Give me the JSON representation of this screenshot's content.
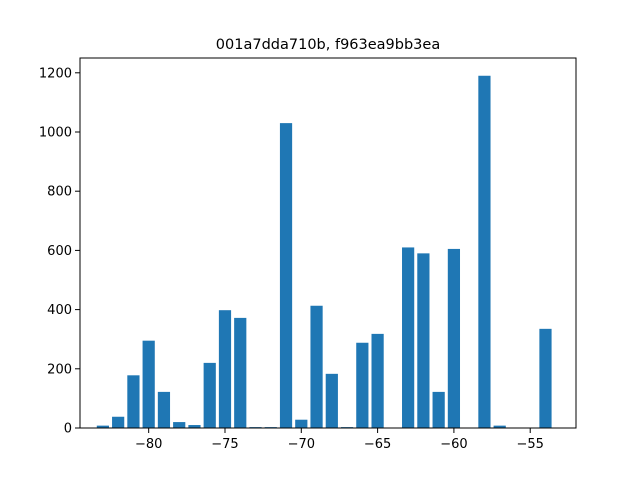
{
  "chart_data": {
    "type": "bar",
    "title": "001a7dda710b, f963ea9bb3ea",
    "xlabel": "",
    "ylabel": "",
    "bar_color": "#1f77b4",
    "bar_width": 0.8,
    "xlim": [
      -84.5,
      -52
    ],
    "ylim": [
      0,
      1250
    ],
    "x_ticks": [
      -80,
      -75,
      -70,
      -65,
      -60,
      -55
    ],
    "x_tick_labels": [
      "−80",
      "−75",
      "−70",
      "−65",
      "−60",
      "−55"
    ],
    "y_ticks": [
      0,
      200,
      400,
      600,
      800,
      1000,
      1200
    ],
    "y_tick_labels": [
      "0",
      "200",
      "400",
      "600",
      "800",
      "1000",
      "1200"
    ],
    "grid": false,
    "x": [
      -83,
      -82,
      -81,
      -80,
      -79,
      -78,
      -77,
      -76,
      -75,
      -74,
      -73,
      -72,
      -71,
      -70,
      -69,
      -68,
      -67,
      -66,
      -65,
      -63,
      -62,
      -61,
      -60,
      -58,
      -57,
      -54
    ],
    "values": [
      8,
      38,
      178,
      295,
      122,
      20,
      10,
      220,
      398,
      372,
      3,
      3,
      1030,
      28,
      413,
      183,
      3,
      288,
      318,
      610,
      590,
      122,
      605,
      1190,
      8,
      335
    ]
  }
}
